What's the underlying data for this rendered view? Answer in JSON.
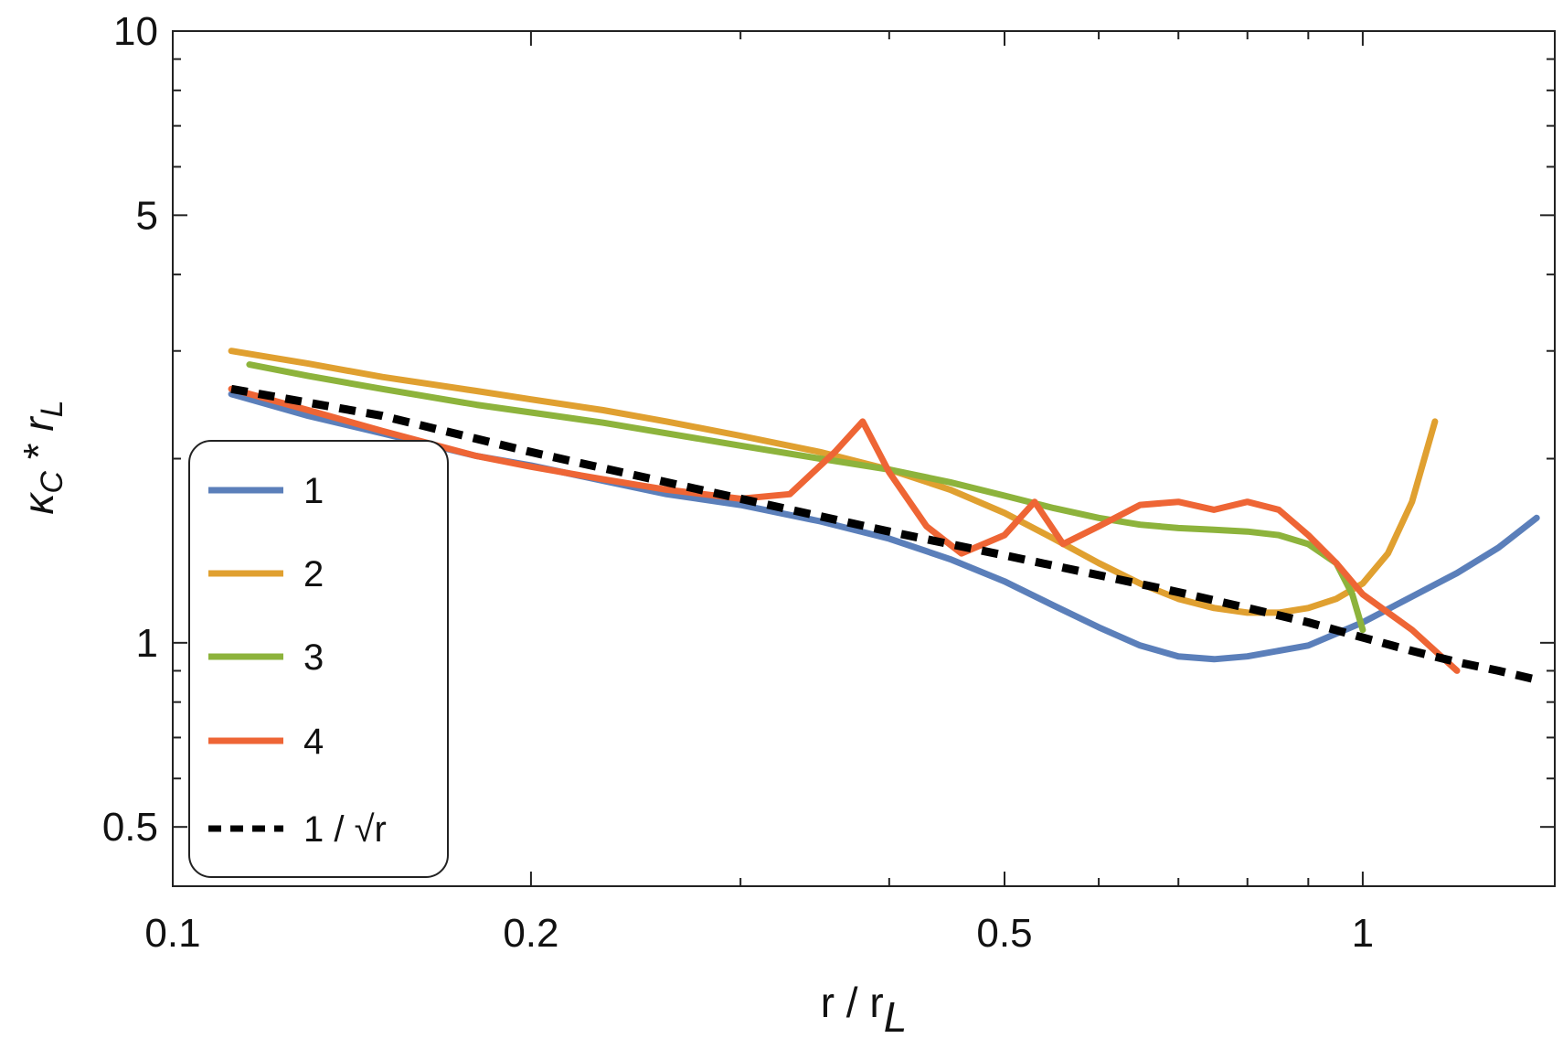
{
  "chart_data": {
    "type": "line",
    "xlabel": "r / r_L",
    "ylabel": "κ_C * r_L",
    "x_scale": "log",
    "y_scale": "log",
    "xlim": [
      0.1,
      1.45
    ],
    "ylim": [
      0.4,
      10
    ],
    "x_ticks": [
      {
        "value": 0.1,
        "label": "0.1"
      },
      {
        "value": 0.2,
        "label": "0.2"
      },
      {
        "value": 0.5,
        "label": "0.5"
      },
      {
        "value": 1,
        "label": "1"
      }
    ],
    "y_ticks": [
      {
        "value": 0.5,
        "label": "0.5"
      },
      {
        "value": 1,
        "label": "1"
      },
      {
        "value": 5,
        "label": "5"
      },
      {
        "value": 10,
        "label": "10"
      }
    ],
    "grid": false,
    "legend_position": "bottom-left",
    "series": [
      {
        "name": "1",
        "color": "#5b7fba",
        "x": [
          0.112,
          0.13,
          0.15,
          0.18,
          0.2,
          0.23,
          0.26,
          0.3,
          0.35,
          0.4,
          0.45,
          0.5,
          0.55,
          0.6,
          0.65,
          0.7,
          0.75,
          0.8,
          0.9,
          1.0,
          1.1,
          1.2,
          1.3,
          1.4
        ],
        "y": [
          2.55,
          2.35,
          2.2,
          2.02,
          1.95,
          1.84,
          1.75,
          1.68,
          1.58,
          1.48,
          1.37,
          1.26,
          1.15,
          1.06,
          0.99,
          0.95,
          0.94,
          0.95,
          0.99,
          1.08,
          1.19,
          1.3,
          1.43,
          1.6
        ]
      },
      {
        "name": "2",
        "color": "#e0a030",
        "x": [
          0.112,
          0.13,
          0.15,
          0.18,
          0.2,
          0.23,
          0.26,
          0.3,
          0.35,
          0.4,
          0.45,
          0.5,
          0.55,
          0.6,
          0.65,
          0.7,
          0.75,
          0.8,
          0.85,
          0.9,
          0.95,
          1.0,
          1.05,
          1.1,
          1.15
        ],
        "y": [
          3.0,
          2.86,
          2.72,
          2.58,
          2.5,
          2.4,
          2.3,
          2.18,
          2.05,
          1.92,
          1.78,
          1.63,
          1.48,
          1.35,
          1.25,
          1.18,
          1.14,
          1.12,
          1.12,
          1.14,
          1.18,
          1.25,
          1.4,
          1.7,
          2.3
        ]
      },
      {
        "name": "3",
        "color": "#8db33c",
        "x": [
          0.116,
          0.13,
          0.15,
          0.18,
          0.2,
          0.23,
          0.26,
          0.3,
          0.35,
          0.4,
          0.45,
          0.5,
          0.55,
          0.6,
          0.65,
          0.7,
          0.75,
          0.8,
          0.85,
          0.9,
          0.95,
          0.98,
          1.0
        ],
        "y": [
          2.85,
          2.73,
          2.6,
          2.45,
          2.38,
          2.29,
          2.2,
          2.1,
          2.0,
          1.92,
          1.83,
          1.74,
          1.66,
          1.6,
          1.56,
          1.54,
          1.53,
          1.52,
          1.5,
          1.45,
          1.35,
          1.2,
          1.05
        ]
      },
      {
        "name": "4",
        "color": "#ee6535",
        "x": [
          0.112,
          0.13,
          0.15,
          0.18,
          0.2,
          0.23,
          0.26,
          0.3,
          0.33,
          0.36,
          0.38,
          0.4,
          0.43,
          0.46,
          0.5,
          0.53,
          0.56,
          0.6,
          0.65,
          0.7,
          0.75,
          0.8,
          0.85,
          0.9,
          0.95,
          1.0,
          1.1,
          1.2
        ],
        "y": [
          2.6,
          2.4,
          2.22,
          2.02,
          1.94,
          1.85,
          1.78,
          1.72,
          1.75,
          2.05,
          2.3,
          1.9,
          1.55,
          1.4,
          1.5,
          1.7,
          1.45,
          1.55,
          1.68,
          1.7,
          1.65,
          1.7,
          1.65,
          1.5,
          1.35,
          1.2,
          1.05,
          0.9
        ]
      },
      {
        "name": "1 / √r",
        "color": "#000000",
        "dashed": true,
        "x": [
          0.112,
          0.15,
          0.2,
          0.3,
          0.4,
          0.5,
          0.6,
          0.7,
          0.8,
          0.9,
          1.0,
          1.1,
          1.2,
          1.3,
          1.4
        ],
        "y": [
          2.6,
          2.35,
          2.05,
          1.72,
          1.52,
          1.39,
          1.29,
          1.21,
          1.14,
          1.08,
          1.02,
          0.97,
          0.93,
          0.9,
          0.87
        ]
      }
    ]
  }
}
